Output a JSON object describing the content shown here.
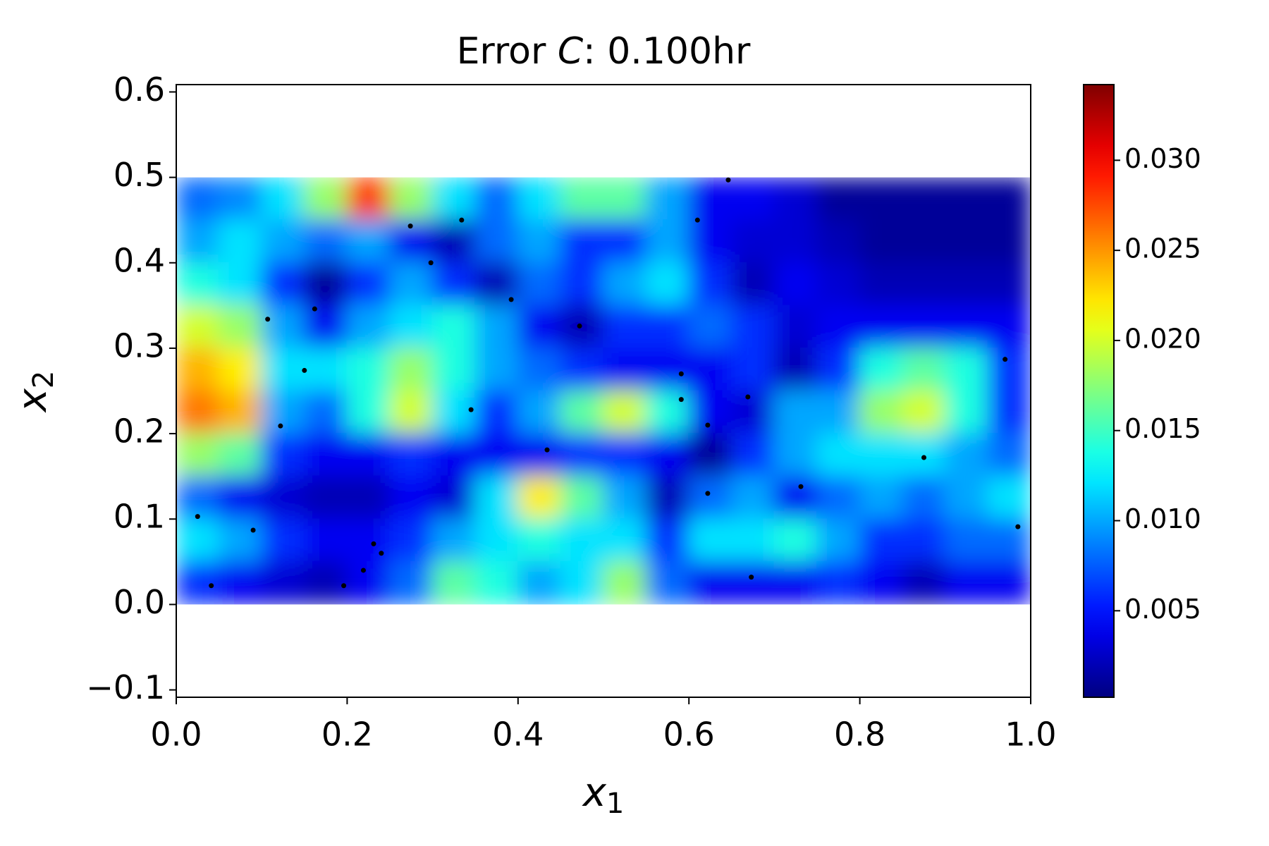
{
  "chart_data": {
    "type": "heatmap",
    "title": [
      "Error ",
      "C",
      ": 0.100hr"
    ],
    "xlabel": [
      "x",
      "1"
    ],
    "ylabel": [
      "x",
      "2"
    ],
    "xlim": [
      0,
      1
    ],
    "ylim": [
      -0.1086,
      0.6086
    ],
    "xticks": [
      {
        "value": 0,
        "label": "0.0"
      },
      {
        "value": 0.2,
        "label": "0.2"
      },
      {
        "value": 0.4,
        "label": "0.4"
      },
      {
        "value": 0.6,
        "label": "0.6"
      },
      {
        "value": 0.8,
        "label": "0.8"
      },
      {
        "value": 1,
        "label": "1.0"
      }
    ],
    "yticks": [
      {
        "value": -0.1,
        "label": "−0.1"
      },
      {
        "value": 0,
        "label": "0.0"
      },
      {
        "value": 0.1,
        "label": "0.1"
      },
      {
        "value": 0.2,
        "label": "0.2"
      },
      {
        "value": 0.3,
        "label": "0.3"
      },
      {
        "value": 0.4,
        "label": "0.4"
      },
      {
        "value": 0.5,
        "label": "0.5"
      },
      {
        "value": 0.6,
        "label": "0.6"
      }
    ],
    "colormap": "jet",
    "clim": [
      0.0002,
      0.0342
    ],
    "cticks": [
      {
        "value": 0.005,
        "label": "0.005"
      },
      {
        "value": 0.01,
        "label": "0.010"
      },
      {
        "value": 0.015,
        "label": "0.015"
      },
      {
        "value": 0.02,
        "label": "0.020"
      },
      {
        "value": 0.025,
        "label": "0.025"
      },
      {
        "value": 0.03,
        "label": "0.030"
      }
    ],
    "x": [
      0.025,
      0.075,
      0.125,
      0.175,
      0.225,
      0.275,
      0.325,
      0.375,
      0.425,
      0.475,
      0.525,
      0.575,
      0.625,
      0.675,
      0.725,
      0.775,
      0.825,
      0.875,
      0.925,
      0.975
    ],
    "y": [
      0.475,
      0.425,
      0.375,
      0.325,
      0.275,
      0.225,
      0.175,
      0.125,
      0.075,
      0.025
    ],
    "z": [
      [
        0.008,
        0.009,
        0.012,
        0.018,
        0.028,
        0.018,
        0.012,
        0.008,
        0.012,
        0.016,
        0.016,
        0.01,
        0.004,
        0.004,
        0.003,
        0.001,
        0.001,
        0.001,
        0.001,
        0.001
      ],
      [
        0.01,
        0.012,
        0.01,
        0.008,
        0.01,
        0.004,
        0.002,
        0.008,
        0.01,
        0.006,
        0.006,
        0.01,
        0.004,
        0.003,
        0.003,
        0.002,
        0.001,
        0.001,
        0.001,
        0.001
      ],
      [
        0.014,
        0.012,
        0.006,
        0.001,
        0.006,
        0.01,
        0.006,
        0.002,
        0.008,
        0.006,
        0.01,
        0.012,
        0.006,
        0.002,
        0.004,
        0.003,
        0.002,
        0.002,
        0.002,
        0.002
      ],
      [
        0.02,
        0.018,
        0.01,
        0.004,
        0.01,
        0.012,
        0.014,
        0.01,
        0.004,
        0.002,
        0.006,
        0.006,
        0.008,
        0.006,
        0.003,
        0.004,
        0.004,
        0.004,
        0.004,
        0.004
      ],
      [
        0.024,
        0.022,
        0.012,
        0.012,
        0.014,
        0.018,
        0.014,
        0.01,
        0.008,
        0.006,
        0.004,
        0.004,
        0.004,
        0.006,
        0.002,
        0.006,
        0.014,
        0.016,
        0.014,
        0.006
      ],
      [
        0.026,
        0.024,
        0.01,
        0.008,
        0.014,
        0.02,
        0.012,
        0.006,
        0.01,
        0.016,
        0.02,
        0.014,
        0.004,
        0.003,
        0.01,
        0.01,
        0.018,
        0.02,
        0.014,
        0.006
      ],
      [
        0.018,
        0.016,
        0.006,
        0.004,
        0.004,
        0.006,
        0.004,
        0.004,
        0.004,
        0.006,
        0.006,
        0.004,
        0.001,
        0.006,
        0.01,
        0.012,
        0.012,
        0.012,
        0.01,
        0.008
      ],
      [
        0.008,
        0.004,
        0.003,
        0.002,
        0.002,
        0.004,
        0.003,
        0.012,
        0.022,
        0.016,
        0.01,
        0.002,
        0.008,
        0.01,
        0.004,
        0.008,
        0.01,
        0.008,
        0.01,
        0.012
      ],
      [
        0.012,
        0.01,
        0.006,
        0.004,
        0.004,
        0.006,
        0.01,
        0.012,
        0.014,
        0.012,
        0.012,
        0.006,
        0.012,
        0.012,
        0.014,
        0.01,
        0.006,
        0.006,
        0.008,
        0.008
      ],
      [
        0.006,
        0.004,
        0.003,
        0.002,
        0.004,
        0.008,
        0.016,
        0.014,
        0.01,
        0.012,
        0.018,
        0.008,
        0.004,
        0.004,
        0.004,
        0.006,
        0.004,
        0.002,
        0.004,
        0.004
      ]
    ],
    "points": {
      "color": "#000000",
      "x": [
        0.274,
        0.334,
        0.298,
        0.392,
        0.472,
        0.107,
        0.162,
        0.15,
        0.122,
        0.345,
        0.434,
        0.591,
        0.591,
        0.669,
        0.622,
        0.61,
        0.646,
        0.97,
        0.875,
        0.731,
        0.622,
        0.985,
        0.673,
        0.025,
        0.09,
        0.041,
        0.196,
        0.219,
        0.231,
        0.24
      ],
      "y": [
        0.443,
        0.45,
        0.4,
        0.357,
        0.326,
        0.334,
        0.346,
        0.274,
        0.209,
        0.228,
        0.181,
        0.27,
        0.24,
        0.243,
        0.21,
        0.45,
        0.497,
        0.287,
        0.172,
        0.138,
        0.13,
        0.091,
        0.032,
        0.103,
        0.087,
        0.022,
        0.022,
        0.04,
        0.071,
        0.06
      ]
    }
  }
}
